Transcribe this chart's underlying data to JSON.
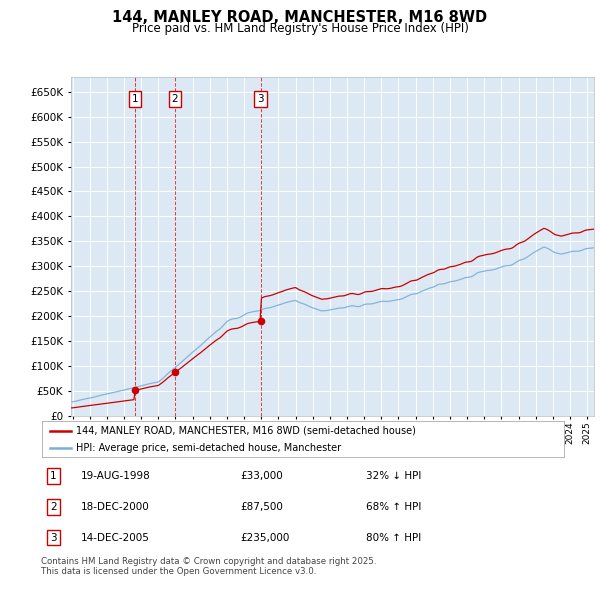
{
  "title": "144, MANLEY ROAD, MANCHESTER, M16 8WD",
  "subtitle": "Price paid vs. HM Land Registry's House Price Index (HPI)",
  "plot_bg_color": "#dce9f5",
  "red_label": "144, MANLEY ROAD, MANCHESTER, M16 8WD (semi-detached house)",
  "blue_label": "HPI: Average price, semi-detached house, Manchester",
  "red_color": "#cc0000",
  "blue_color": "#7bafd4",
  "transactions": [
    {
      "num": 1,
      "date": "19-AUG-1998",
      "price": 33000,
      "year": 1998.63,
      "pct": "32% ↓ HPI"
    },
    {
      "num": 2,
      "date": "18-DEC-2000",
      "price": 87500,
      "year": 2000.96,
      "pct": "68% ↑ HPI"
    },
    {
      "num": 3,
      "date": "14-DEC-2005",
      "price": 235000,
      "year": 2005.96,
      "pct": "80% ↑ HPI"
    }
  ],
  "footer": "Contains HM Land Registry data © Crown copyright and database right 2025.\nThis data is licensed under the Open Government Licence v3.0.",
  "ylim": [
    0,
    680000
  ],
  "yticks": [
    0,
    50000,
    100000,
    150000,
    200000,
    250000,
    300000,
    350000,
    400000,
    450000,
    500000,
    550000,
    600000,
    650000
  ],
  "xmin": 1994.9,
  "xmax": 2025.4
}
